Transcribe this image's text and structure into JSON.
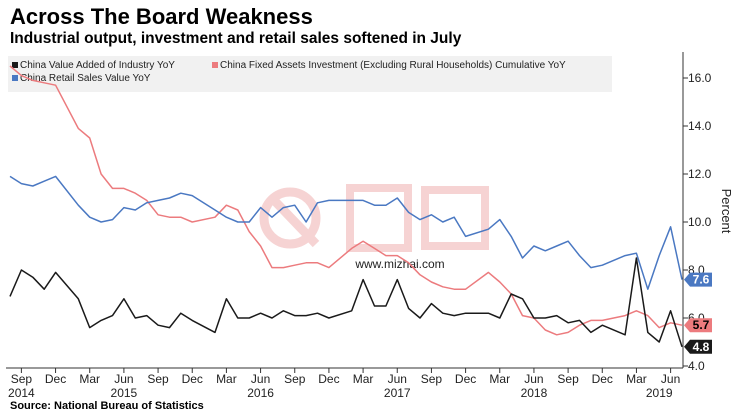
{
  "title": "Across The Board Weakness",
  "subtitle": "Industrial output, investment and retail sales softened in July",
  "source": "Source: National Bureau of Statistics",
  "watermark": "www.mizhai.com",
  "chart_data": {
    "type": "line",
    "ylabel": "Percent",
    "ylim": [
      4.0,
      17.0
    ],
    "yticks": [
      "4.0",
      "6.0",
      "8.0",
      "10.0",
      "12.0",
      "14.0",
      "16.0"
    ],
    "y_axis_side": "right",
    "grid": false,
    "legend": "top-left",
    "x_start": "2014-08",
    "x_end": "2019-07",
    "month_ticks": [
      {
        "label": "Sep",
        "date": "2014-09"
      },
      {
        "label": "Dec",
        "date": "2014-12"
      },
      {
        "label": "Mar",
        "date": "2015-03"
      },
      {
        "label": "Jun",
        "date": "2015-06"
      },
      {
        "label": "Sep",
        "date": "2015-09"
      },
      {
        "label": "Dec",
        "date": "2015-12"
      },
      {
        "label": "Mar",
        "date": "2016-03"
      },
      {
        "label": "Jun",
        "date": "2016-06"
      },
      {
        "label": "Sep",
        "date": "2016-09"
      },
      {
        "label": "Dec",
        "date": "2016-12"
      },
      {
        "label": "Mar",
        "date": "2017-03"
      },
      {
        "label": "Jun",
        "date": "2017-06"
      },
      {
        "label": "Sep",
        "date": "2017-09"
      },
      {
        "label": "Dec",
        "date": "2017-12"
      },
      {
        "label": "Mar",
        "date": "2018-03"
      },
      {
        "label": "Jun",
        "date": "2018-06"
      },
      {
        "label": "Sep",
        "date": "2018-09"
      },
      {
        "label": "Dec",
        "date": "2018-12"
      },
      {
        "label": "Mar",
        "date": "2019-03"
      },
      {
        "label": "Jun",
        "date": "2019-06"
      }
    ],
    "year_ticks": [
      {
        "label": "2014",
        "date": "2014-09"
      },
      {
        "label": "2015",
        "date": "2015-06"
      },
      {
        "label": "2016",
        "date": "2016-06"
      },
      {
        "label": "2017",
        "date": "2017-06"
      },
      {
        "label": "2018",
        "date": "2018-06"
      },
      {
        "label": "2019",
        "date": "2019-05"
      }
    ],
    "series": [
      {
        "name": "China Value Added of Industry YoY",
        "color": "#1a1a1a",
        "last_label": "4.8",
        "points": [
          [
            "2014-08",
            6.9
          ],
          [
            "2014-09",
            8.0
          ],
          [
            "2014-10",
            7.7
          ],
          [
            "2014-11",
            7.2
          ],
          [
            "2014-12",
            7.9
          ],
          [
            "2015-02",
            6.8
          ],
          [
            "2015-03",
            5.6
          ],
          [
            "2015-04",
            5.9
          ],
          [
            "2015-05",
            6.1
          ],
          [
            "2015-06",
            6.8
          ],
          [
            "2015-07",
            6.0
          ],
          [
            "2015-08",
            6.1
          ],
          [
            "2015-09",
            5.7
          ],
          [
            "2015-10",
            5.6
          ],
          [
            "2015-11",
            6.2
          ],
          [
            "2015-12",
            5.9
          ],
          [
            "2016-02",
            5.4
          ],
          [
            "2016-03",
            6.8
          ],
          [
            "2016-04",
            6.0
          ],
          [
            "2016-05",
            6.0
          ],
          [
            "2016-06",
            6.2
          ],
          [
            "2016-07",
            6.0
          ],
          [
            "2016-08",
            6.3
          ],
          [
            "2016-09",
            6.1
          ],
          [
            "2016-10",
            6.1
          ],
          [
            "2016-11",
            6.2
          ],
          [
            "2016-12",
            6.0
          ],
          [
            "2017-02",
            6.3
          ],
          [
            "2017-03",
            7.6
          ],
          [
            "2017-04",
            6.5
          ],
          [
            "2017-05",
            6.5
          ],
          [
            "2017-06",
            7.6
          ],
          [
            "2017-07",
            6.4
          ],
          [
            "2017-08",
            6.0
          ],
          [
            "2017-09",
            6.6
          ],
          [
            "2017-10",
            6.2
          ],
          [
            "2017-11",
            6.1
          ],
          [
            "2017-12",
            6.2
          ],
          [
            "2018-02",
            6.2
          ],
          [
            "2018-03",
            6.0
          ],
          [
            "2018-04",
            7.0
          ],
          [
            "2018-05",
            6.8
          ],
          [
            "2018-06",
            6.0
          ],
          [
            "2018-07",
            6.0
          ],
          [
            "2018-08",
            6.1
          ],
          [
            "2018-09",
            5.8
          ],
          [
            "2018-10",
            5.9
          ],
          [
            "2018-11",
            5.4
          ],
          [
            "2018-12",
            5.7
          ],
          [
            "2019-02",
            5.3
          ],
          [
            "2019-03",
            8.5
          ],
          [
            "2019-04",
            5.4
          ],
          [
            "2019-05",
            5.0
          ],
          [
            "2019-06",
            6.3
          ],
          [
            "2019-07",
            4.8
          ]
        ]
      },
      {
        "name": "China Fixed Assets Investment (Excluding Rural Households) Cumulative YoY",
        "color": "#ec7b7e",
        "last_label": "5.7",
        "points": [
          [
            "2014-08",
            16.5
          ],
          [
            "2014-09",
            16.1
          ],
          [
            "2014-10",
            15.9
          ],
          [
            "2014-11",
            15.8
          ],
          [
            "2014-12",
            15.7
          ],
          [
            "2015-02",
            13.9
          ],
          [
            "2015-03",
            13.5
          ],
          [
            "2015-04",
            12.0
          ],
          [
            "2015-05",
            11.4
          ],
          [
            "2015-06",
            11.4
          ],
          [
            "2015-07",
            11.2
          ],
          [
            "2015-08",
            10.9
          ],
          [
            "2015-09",
            10.3
          ],
          [
            "2015-10",
            10.2
          ],
          [
            "2015-11",
            10.2
          ],
          [
            "2015-12",
            10.0
          ],
          [
            "2016-02",
            10.2
          ],
          [
            "2016-03",
            10.7
          ],
          [
            "2016-04",
            10.5
          ],
          [
            "2016-05",
            9.6
          ],
          [
            "2016-06",
            9.0
          ],
          [
            "2016-07",
            8.1
          ],
          [
            "2016-08",
            8.1
          ],
          [
            "2016-09",
            8.2
          ],
          [
            "2016-10",
            8.3
          ],
          [
            "2016-11",
            8.3
          ],
          [
            "2016-12",
            8.1
          ],
          [
            "2017-02",
            8.9
          ],
          [
            "2017-03",
            9.2
          ],
          [
            "2017-04",
            8.9
          ],
          [
            "2017-05",
            8.6
          ],
          [
            "2017-06",
            8.6
          ],
          [
            "2017-07",
            8.3
          ],
          [
            "2017-08",
            7.8
          ],
          [
            "2017-09",
            7.5
          ],
          [
            "2017-10",
            7.3
          ],
          [
            "2017-11",
            7.2
          ],
          [
            "2017-12",
            7.2
          ],
          [
            "2018-02",
            7.9
          ],
          [
            "2018-03",
            7.5
          ],
          [
            "2018-04",
            7.0
          ],
          [
            "2018-05",
            6.1
          ],
          [
            "2018-06",
            6.0
          ],
          [
            "2018-07",
            5.5
          ],
          [
            "2018-08",
            5.3
          ],
          [
            "2018-09",
            5.4
          ],
          [
            "2018-10",
            5.7
          ],
          [
            "2018-11",
            5.9
          ],
          [
            "2018-12",
            5.9
          ],
          [
            "2019-02",
            6.1
          ],
          [
            "2019-03",
            6.3
          ],
          [
            "2019-04",
            6.1
          ],
          [
            "2019-05",
            5.6
          ],
          [
            "2019-06",
            5.8
          ],
          [
            "2019-07",
            5.7
          ]
        ]
      },
      {
        "name": "China Retail Sales Value YoY",
        "color": "#4a78c2",
        "last_label": "7.6",
        "points": [
          [
            "2014-08",
            11.9
          ],
          [
            "2014-09",
            11.6
          ],
          [
            "2014-10",
            11.5
          ],
          [
            "2014-11",
            11.7
          ],
          [
            "2014-12",
            11.9
          ],
          [
            "2015-02",
            10.7
          ],
          [
            "2015-03",
            10.2
          ],
          [
            "2015-04",
            10.0
          ],
          [
            "2015-05",
            10.1
          ],
          [
            "2015-06",
            10.6
          ],
          [
            "2015-07",
            10.5
          ],
          [
            "2015-08",
            10.8
          ],
          [
            "2015-09",
            10.9
          ],
          [
            "2015-10",
            11.0
          ],
          [
            "2015-11",
            11.2
          ],
          [
            "2015-12",
            11.1
          ],
          [
            "2016-02",
            10.5
          ],
          [
            "2016-03",
            10.2
          ],
          [
            "2016-04",
            10.0
          ],
          [
            "2016-05",
            10.0
          ],
          [
            "2016-06",
            10.6
          ],
          [
            "2016-07",
            10.2
          ],
          [
            "2016-08",
            10.6
          ],
          [
            "2016-09",
            10.7
          ],
          [
            "2016-10",
            10.0
          ],
          [
            "2016-11",
            10.8
          ],
          [
            "2016-12",
            10.9
          ],
          [
            "2017-02",
            10.9
          ],
          [
            "2017-03",
            10.9
          ],
          [
            "2017-04",
            10.7
          ],
          [
            "2017-05",
            10.7
          ],
          [
            "2017-06",
            11.0
          ],
          [
            "2017-07",
            10.4
          ],
          [
            "2017-08",
            10.1
          ],
          [
            "2017-09",
            10.3
          ],
          [
            "2017-10",
            10.0
          ],
          [
            "2017-11",
            10.2
          ],
          [
            "2017-12",
            9.4
          ],
          [
            "2018-02",
            9.7
          ],
          [
            "2018-03",
            10.1
          ],
          [
            "2018-04",
            9.4
          ],
          [
            "2018-05",
            8.5
          ],
          [
            "2018-06",
            9.0
          ],
          [
            "2018-07",
            8.8
          ],
          [
            "2018-08",
            9.0
          ],
          [
            "2018-09",
            9.2
          ],
          [
            "2018-10",
            8.6
          ],
          [
            "2018-11",
            8.1
          ],
          [
            "2018-12",
            8.2
          ],
          [
            "2019-02",
            8.6
          ],
          [
            "2019-03",
            8.7
          ],
          [
            "2019-04",
            7.2
          ],
          [
            "2019-05",
            8.6
          ],
          [
            "2019-06",
            9.8
          ],
          [
            "2019-07",
            7.6
          ]
        ]
      }
    ]
  }
}
